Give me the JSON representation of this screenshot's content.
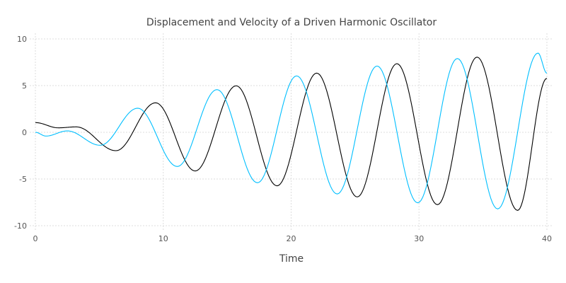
{
  "chart_data": {
    "type": "line",
    "title": "Displacement and Velocity of a Driven Harmonic Oscillator",
    "xlabel": "Time",
    "ylabel": "",
    "xlim": [
      0,
      40
    ],
    "ylim": [
      -10,
      10
    ],
    "xticks": [
      "0",
      "10",
      "20",
      "30",
      "40"
    ],
    "yticks": [
      "-10",
      "-5",
      "0",
      "5",
      "10"
    ],
    "grid": true,
    "legend": "none",
    "series": [
      {
        "color": "#000000",
        "points": [
          [
            0,
            1.04
          ],
          [
            1.8,
            0.48
          ],
          [
            3.2,
            0.58
          ],
          [
            6.3,
            -1.97
          ],
          [
            9.4,
            3.16
          ],
          [
            12.5,
            -4.14
          ],
          [
            15.7,
            4.98
          ],
          [
            18.9,
            -5.73
          ],
          [
            22.0,
            6.34
          ],
          [
            25.17,
            -6.92
          ],
          [
            28.27,
            7.35
          ],
          [
            31.44,
            -7.75
          ],
          [
            34.54,
            8.05
          ],
          [
            37.71,
            -8.36
          ],
          [
            40,
            5.78
          ]
        ]
      },
      {
        "color": "#00bfff",
        "points": [
          [
            0,
            0
          ],
          [
            0.83,
            -0.4
          ],
          [
            2.5,
            0.15
          ],
          [
            5.07,
            -1.39
          ],
          [
            8.0,
            2.58
          ],
          [
            11.1,
            -3.66
          ],
          [
            14.2,
            4.57
          ],
          [
            17.37,
            -5.4
          ],
          [
            20.43,
            6.04
          ],
          [
            23.6,
            -6.6
          ],
          [
            26.72,
            7.1
          ],
          [
            29.9,
            -7.55
          ],
          [
            33.0,
            7.9
          ],
          [
            36.15,
            -8.2
          ],
          [
            39.3,
            8.48
          ],
          [
            40,
            6.34
          ]
        ]
      }
    ]
  }
}
